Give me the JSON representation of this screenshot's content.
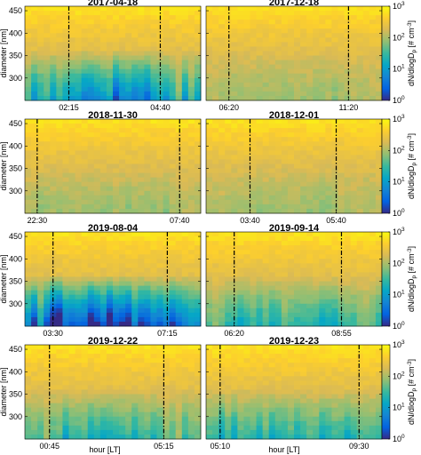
{
  "figure": {
    "xlabel": "hour [LT]",
    "ylabel": "diameter [nm]",
    "colorbar_label_parts": [
      "dN/dlogD",
      "p",
      " [# cm",
      "-3",
      "]"
    ],
    "colorbar_ticks": [
      {
        "base": "10",
        "exp": "0",
        "value": 1
      },
      {
        "base": "10",
        "exp": "1",
        "value": 10
      },
      {
        "base": "10",
        "exp": "2",
        "value": 100
      },
      {
        "base": "10",
        "exp": "3",
        "value": 1000
      }
    ],
    "colormap": "parula",
    "colormap_stops": [
      "#352a87",
      "#0363e1",
      "#1485d4",
      "#06a7c6",
      "#38b99e",
      "#92bf73",
      "#d9ba56",
      "#fcce2e",
      "#f9fb0e"
    ]
  },
  "chart_data": [
    {
      "type": "heatmap",
      "title": "2017-04-18",
      "ylabel": "diameter [nm]",
      "ylim": [
        250,
        460
      ],
      "yticks": [
        300,
        350,
        400,
        450
      ],
      "xticks": [
        "02:15",
        "04:40"
      ],
      "vlines": [
        "02:15",
        "04:40"
      ],
      "zscale": "log",
      "zlim": [
        1,
        1000
      ],
      "intensity": "high"
    },
    {
      "type": "heatmap",
      "title": "2017-12-18",
      "ylim": [
        250,
        460
      ],
      "yticks": [
        300,
        350,
        400,
        450
      ],
      "xticks": [
        "06:20",
        "11:20"
      ],
      "vlines": [
        "06:20",
        "11:20"
      ],
      "zscale": "log",
      "zlim": [
        1,
        1000
      ],
      "intensity": "low"
    },
    {
      "type": "heatmap",
      "title": "2018-11-30",
      "ylabel": "diameter [nm]",
      "ylim": [
        250,
        460
      ],
      "yticks": [
        300,
        350,
        400,
        450
      ],
      "xticks": [
        "22:30",
        "07:40"
      ],
      "vlines": [
        "22:30",
        "07:40"
      ],
      "zscale": "log",
      "zlim": [
        1,
        1000
      ],
      "intensity": "low"
    },
    {
      "type": "heatmap",
      "title": "2018-12-01",
      "ylim": [
        250,
        460
      ],
      "yticks": [
        300,
        350,
        400,
        450
      ],
      "xticks": [
        "03:40",
        "05:40"
      ],
      "vlines": [
        "03:40",
        "05:40"
      ],
      "zscale": "log",
      "zlim": [
        1,
        1000
      ],
      "intensity": "low"
    },
    {
      "type": "heatmap",
      "title": "2019-08-04",
      "ylabel": "diameter [nm]",
      "ylim": [
        250,
        460
      ],
      "yticks": [
        300,
        350,
        400,
        450
      ],
      "xticks": [
        "03:30",
        "07:15"
      ],
      "vlines": [
        "03:30",
        "07:15"
      ],
      "zscale": "log",
      "zlim": [
        1,
        1000
      ],
      "intensity": "very high"
    },
    {
      "type": "heatmap",
      "title": "2019-09-14",
      "ylim": [
        250,
        460
      ],
      "yticks": [
        300,
        350,
        400,
        450
      ],
      "xticks": [
        "06:20",
        "08:55"
      ],
      "vlines": [
        "06:20",
        "08:55"
      ],
      "zscale": "log",
      "zlim": [
        1,
        1000
      ],
      "intensity": "medium"
    },
    {
      "type": "heatmap",
      "title": "2019-12-22",
      "ylabel": "diameter [nm]",
      "xlabel": "hour [LT]",
      "ylim": [
        250,
        460
      ],
      "yticks": [
        300,
        350,
        400,
        450
      ],
      "xticks": [
        "00:45",
        "05:15"
      ],
      "vlines": [
        "00:45",
        "05:15"
      ],
      "zscale": "log",
      "zlim": [
        1,
        1000
      ],
      "intensity": "medium"
    },
    {
      "type": "heatmap",
      "title": "2019-12-23",
      "xlabel": "hour [LT]",
      "ylim": [
        250,
        460
      ],
      "yticks": [
        300,
        350,
        400,
        450
      ],
      "xticks": [
        "05:10",
        "09:30"
      ],
      "vlines": [
        "05:10",
        "09:30"
      ],
      "zscale": "log",
      "zlim": [
        1,
        1000
      ],
      "intensity": "medium"
    }
  ]
}
